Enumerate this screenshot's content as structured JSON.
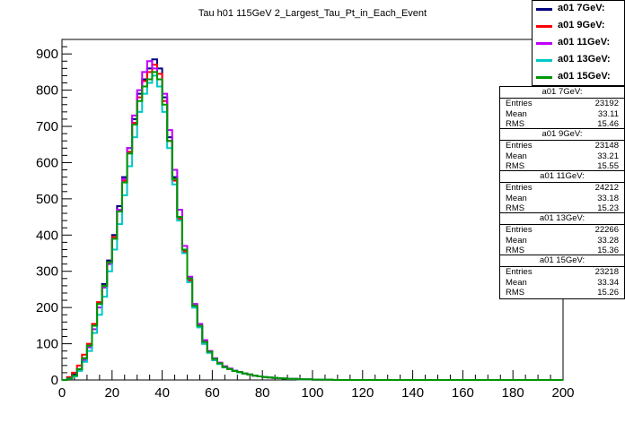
{
  "chart_data": {
    "type": "histogram",
    "title": "Tau h01 115GeV 2_Largest_Tau_Pt_in_Each_Event",
    "xlim": [
      0,
      200
    ],
    "ylim": [
      0,
      940
    ],
    "x_ticks": [
      "0",
      "20",
      "40",
      "60",
      "80",
      "100",
      "120",
      "140",
      "160",
      "180",
      "200"
    ],
    "y_ticks": [
      "0",
      "100",
      "200",
      "300",
      "400",
      "500",
      "600",
      "700",
      "800",
      "900"
    ],
    "bin_width": 2,
    "series": [
      {
        "name": "a01 7GeV:",
        "color": "#00007f",
        "stats": {
          "Entries": "23192",
          "Mean": "33.11",
          "RMS": "15.46"
        },
        "values": [
          0,
          5,
          15,
          30,
          60,
          95,
          150,
          210,
          265,
          330,
          400,
          480,
          560,
          640,
          720,
          790,
          830,
          860,
          885,
          860,
          780,
          670,
          560,
          450,
          360,
          280,
          200,
          150,
          100,
          75,
          55,
          45,
          35,
          30,
          25,
          22,
          18,
          15,
          12,
          10,
          8,
          7,
          6,
          5,
          4,
          3,
          3,
          2,
          2,
          2,
          1,
          1,
          1,
          1,
          0,
          0,
          0,
          0,
          0,
          0,
          0,
          0,
          0,
          0,
          0,
          0,
          0,
          0,
          0,
          0,
          0,
          0,
          0,
          0,
          0,
          0,
          0,
          0,
          0,
          0,
          0,
          0,
          0,
          0,
          0,
          0,
          0,
          0,
          0,
          0,
          0,
          0,
          0,
          0,
          0,
          0,
          0,
          0,
          0,
          0
        ]
      },
      {
        "name": "a01 9GeV:",
        "color": "#ff0000",
        "stats": {
          "Entries": "23148",
          "Mean": "33.21",
          "RMS": "15.55"
        },
        "values": [
          0,
          8,
          20,
          40,
          70,
          100,
          155,
          215,
          260,
          325,
          395,
          470,
          550,
          630,
          710,
          780,
          825,
          850,
          870,
          845,
          770,
          660,
          550,
          445,
          355,
          275,
          205,
          150,
          105,
          78,
          58,
          46,
          36,
          30,
          25,
          22,
          18,
          15,
          12,
          10,
          8,
          7,
          6,
          5,
          4,
          3,
          3,
          2,
          2,
          2,
          1,
          1,
          1,
          1,
          0,
          0,
          0,
          0,
          0,
          0,
          0,
          0,
          0,
          0,
          0,
          0,
          0,
          0,
          0,
          0,
          0,
          0,
          0,
          0,
          0,
          0,
          0,
          0,
          0,
          0,
          0,
          0,
          0,
          0,
          0,
          0,
          0,
          0,
          0,
          0,
          0,
          0,
          0,
          0,
          0,
          0,
          0,
          0,
          0,
          0
        ]
      },
      {
        "name": "a01 11GeV:",
        "color": "#bf00ff",
        "stats": {
          "Entries": "24212",
          "Mean": "33.18",
          "RMS": "15.23"
        },
        "values": [
          0,
          5,
          12,
          28,
          55,
          90,
          140,
          200,
          255,
          320,
          390,
          470,
          555,
          640,
          730,
          800,
          850,
          880,
          860,
          830,
          790,
          690,
          580,
          470,
          370,
          285,
          210,
          155,
          110,
          80,
          60,
          48,
          38,
          32,
          26,
          22,
          18,
          15,
          12,
          10,
          8,
          7,
          6,
          5,
          4,
          3,
          3,
          2,
          2,
          2,
          1,
          1,
          1,
          1,
          0,
          0,
          0,
          0,
          0,
          0,
          0,
          0,
          0,
          0,
          0,
          0,
          0,
          0,
          0,
          0,
          0,
          0,
          0,
          0,
          0,
          0,
          0,
          0,
          0,
          0,
          0,
          0,
          0,
          0,
          0,
          0,
          0,
          0,
          0,
          0,
          0,
          0,
          0,
          0,
          0,
          0,
          0,
          0,
          0,
          0
        ]
      },
      {
        "name": "a01 13GeV:",
        "color": "#00c8c8",
        "stats": {
          "Entries": "22266",
          "Mean": "33.28",
          "RMS": "15.36"
        },
        "values": [
          0,
          3,
          10,
          25,
          50,
          80,
          130,
          180,
          230,
          300,
          360,
          430,
          510,
          590,
          670,
          740,
          790,
          820,
          840,
          810,
          740,
          640,
          540,
          440,
          350,
          270,
          200,
          145,
          100,
          75,
          55,
          44,
          35,
          30,
          25,
          21,
          18,
          15,
          12,
          10,
          8,
          7,
          6,
          5,
          4,
          3,
          3,
          2,
          2,
          2,
          1,
          1,
          1,
          1,
          0,
          0,
          0,
          0,
          0,
          0,
          0,
          0,
          0,
          0,
          0,
          0,
          0,
          0,
          0,
          0,
          0,
          0,
          0,
          0,
          0,
          0,
          0,
          0,
          0,
          0,
          0,
          0,
          0,
          0,
          0,
          0,
          0,
          0,
          0,
          0,
          0,
          0,
          0,
          0,
          0,
          0,
          0,
          0,
          0,
          0
        ]
      },
      {
        "name": "a01 15GeV:",
        "color": "#009600",
        "stats": {
          "Entries": "23218",
          "Mean": "33.34",
          "RMS": "15.26"
        },
        "values": [
          0,
          4,
          12,
          30,
          60,
          95,
          150,
          210,
          260,
          325,
          390,
          465,
          545,
          625,
          705,
          770,
          810,
          830,
          850,
          830,
          760,
          660,
          555,
          450,
          360,
          280,
          205,
          150,
          105,
          78,
          58,
          46,
          36,
          30,
          25,
          22,
          18,
          15,
          12,
          10,
          8,
          7,
          6,
          5,
          4,
          3,
          3,
          2,
          2,
          2,
          1,
          1,
          1,
          1,
          0,
          0,
          0,
          0,
          0,
          0,
          0,
          0,
          0,
          0,
          0,
          0,
          0,
          0,
          0,
          0,
          0,
          0,
          0,
          0,
          0,
          0,
          0,
          0,
          0,
          0,
          0,
          0,
          0,
          0,
          0,
          0,
          0,
          0,
          0,
          0,
          0,
          0,
          0,
          0,
          0,
          0,
          0,
          0,
          0,
          0
        ]
      }
    ]
  },
  "stats_labels": {
    "entries": "Entries",
    "mean": "Mean",
    "rms": "RMS"
  }
}
